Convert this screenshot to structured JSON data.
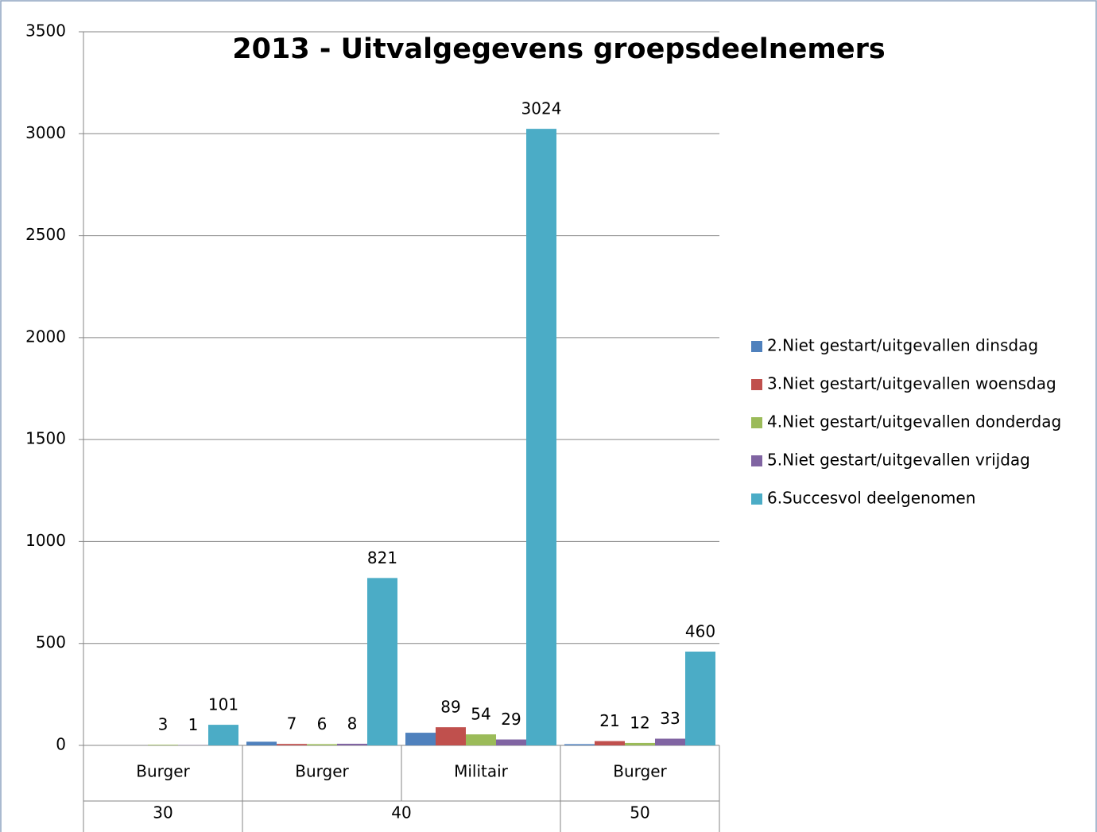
{
  "chart_data": {
    "type": "bar",
    "title": "2013 - Uitvalgegevens groepsdeelnemers",
    "categories": [
      [
        "30",
        "Burger"
      ],
      [
        "40",
        "Burger"
      ],
      [
        "40",
        "Militair"
      ],
      [
        "50",
        "Burger"
      ]
    ],
    "series": [
      {
        "name": "2.Niet gestart/uitgevallen dinsdag",
        "color": "#4f81bd",
        "values": [
          null,
          18,
          62,
          6
        ],
        "show_labels": false
      },
      {
        "name": "3.Niet gestart/uitgevallen woensdag",
        "color": "#c0504d",
        "values": [
          null,
          7,
          89,
          21
        ],
        "show_labels": true
      },
      {
        "name": "4.Niet gestart/uitgevallen donderdag",
        "color": "#9bbb59",
        "values": [
          3,
          6,
          54,
          12
        ],
        "show_labels": true
      },
      {
        "name": "5.Niet gestart/uitgevallen vrijdag",
        "color": "#8064a2",
        "values": [
          1,
          8,
          29,
          33
        ],
        "show_labels": true
      },
      {
        "name": "6.Succesvol deelgenomen",
        "color": "#4bacc6",
        "values": [
          101,
          821,
          3024,
          460
        ],
        "show_labels": true
      }
    ],
    "ylim": [
      0,
      3500
    ],
    "yticks": [
      0,
      500,
      1000,
      1500,
      2000,
      2500,
      3000,
      3500
    ],
    "grid": true,
    "legend": "right"
  }
}
